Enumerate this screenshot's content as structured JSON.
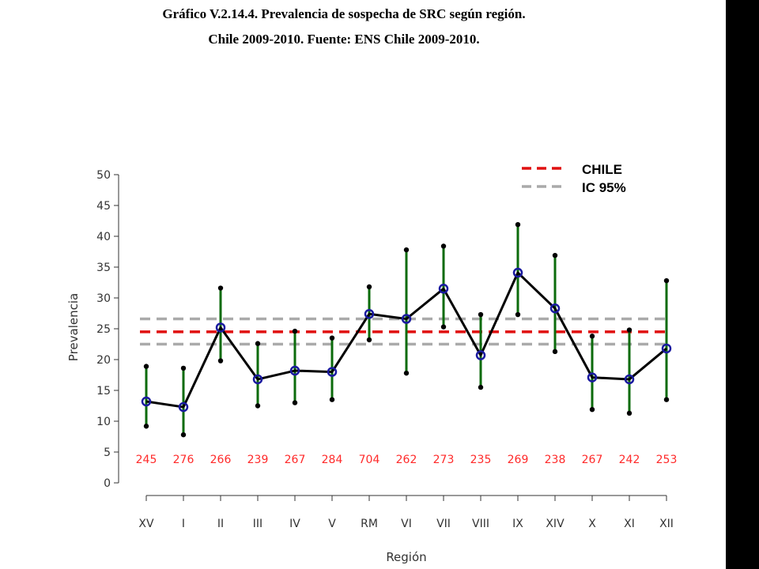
{
  "caption": {
    "line1": "Gráfico V.2.14.4. Prevalencia de sospecha de SRC según región.",
    "line2": "Chile 2009-2010. Fuente: ENS Chile 2009-2010."
  },
  "colors": {
    "chile_line": "#e01010",
    "ci_line": "#aaaaaa",
    "error_bar": "#0b6b0b",
    "series_line": "#000000",
    "point": "#1a1aa0",
    "n_labels": "#ff2a2a"
  },
  "chart_data": {
    "type": "line",
    "title": "",
    "xlabel": "Región",
    "ylabel": "Prevalencia",
    "ylim": [
      0,
      50
    ],
    "yticks": [
      0,
      5,
      10,
      15,
      20,
      25,
      30,
      35,
      40,
      45,
      50
    ],
    "categories": [
      "XV",
      "I",
      "II",
      "III",
      "IV",
      "V",
      "RM",
      "VI",
      "VII",
      "VIII",
      "IX",
      "XIV",
      "X",
      "XI",
      "XII"
    ],
    "series": [
      {
        "values": [
          13.2,
          12.3,
          25.2,
          16.8,
          18.2,
          18.0,
          27.4,
          26.6,
          31.5,
          20.7,
          34.1,
          28.3,
          17.1,
          16.8,
          21.8
        ],
        "ci_low": [
          9.2,
          7.8,
          19.8,
          12.5,
          13.0,
          13.5,
          23.2,
          17.8,
          25.3,
          15.5,
          27.3,
          21.3,
          11.9,
          11.3,
          13.5
        ],
        "ci_high": [
          18.9,
          18.6,
          31.6,
          22.6,
          24.6,
          23.5,
          31.8,
          37.8,
          38.4,
          27.3,
          41.9,
          36.9,
          23.8,
          24.8,
          32.8
        ]
      }
    ],
    "sample_sizes": [
      "245",
      "276",
      "266",
      "239",
      "267",
      "284",
      "704",
      "262",
      "273",
      "235",
      "269",
      "238",
      "267",
      "242",
      "253"
    ],
    "reference_lines": [
      {
        "name": "CHILE",
        "value": 24.5,
        "style": "dashed",
        "color": "#e01010"
      },
      {
        "name": "IC 95%",
        "value": 26.6,
        "style": "dashed",
        "color": "#aaaaaa"
      },
      {
        "name": "IC 95%",
        "value": 22.5,
        "style": "dashed",
        "color": "#aaaaaa"
      }
    ],
    "legend": {
      "placement": "top-right",
      "entries": [
        {
          "label": "CHILE",
          "color": "#e01010"
        },
        {
          "label": "IC 95%",
          "color": "#aaaaaa"
        }
      ]
    },
    "grid": false
  }
}
